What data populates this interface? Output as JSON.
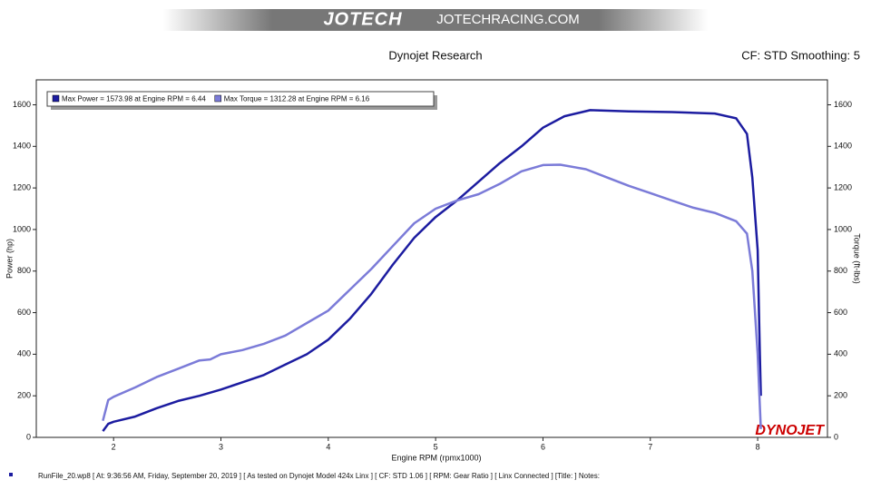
{
  "header": {
    "logo": "JOTECH",
    "site": "JOTECHRACING.COM"
  },
  "chart_data": {
    "type": "line",
    "title": "Dynojet Research",
    "subtitle": "CF: STD Smoothing: 5",
    "x_label": "Engine RPM (rpmx1000)",
    "y_label": "Power (hp)",
    "y2_label": "Torque (ft-lbs)",
    "brand": "DYNOJET",
    "xlim": [
      1.28,
      8.65
    ],
    "xticks": [
      2,
      3,
      4,
      5,
      6,
      7,
      8
    ],
    "ylim": [
      0,
      1720
    ],
    "yticks": [
      0,
      200,
      400,
      600,
      800,
      1000,
      1200,
      1400,
      1600
    ],
    "y2lim": [
      0,
      1720
    ],
    "y2ticks": [
      0,
      200,
      400,
      600,
      800,
      1000,
      1200,
      1400,
      1600
    ],
    "grid": false,
    "legend_position": "upper left",
    "series": [
      {
        "name": "Max Power = 1573.98 at Engine RPM = 6.44",
        "color": "#1c1ca0",
        "x": [
          1.9,
          1.95,
          2.0,
          2.2,
          2.4,
          2.6,
          2.8,
          3.0,
          3.2,
          3.4,
          3.6,
          3.8,
          4.0,
          4.2,
          4.4,
          4.6,
          4.8,
          5.0,
          5.2,
          5.4,
          5.6,
          5.8,
          6.0,
          6.2,
          6.44,
          6.8,
          7.2,
          7.6,
          7.8,
          7.9,
          7.95,
          8.0,
          8.02,
          8.03
        ],
        "values": [
          30,
          65,
          75,
          100,
          140,
          175,
          200,
          230,
          265,
          300,
          350,
          400,
          470,
          570,
          690,
          830,
          960,
          1060,
          1140,
          1230,
          1320,
          1400,
          1490,
          1545,
          1574,
          1568,
          1565,
          1558,
          1535,
          1460,
          1250,
          900,
          400,
          200
        ]
      },
      {
        "name": "Max Torque = 1312.28 at Engine RPM = 6.16",
        "color": "#7b7bd8",
        "axis": "y2",
        "x": [
          1.9,
          1.95,
          2.0,
          2.2,
          2.4,
          2.6,
          2.8,
          2.9,
          3.0,
          3.2,
          3.4,
          3.6,
          3.8,
          4.0,
          4.2,
          4.4,
          4.6,
          4.8,
          5.0,
          5.2,
          5.4,
          5.6,
          5.8,
          6.0,
          6.16,
          6.4,
          6.6,
          6.8,
          7.0,
          7.2,
          7.4,
          7.6,
          7.8,
          7.9,
          7.95,
          8.0,
          8.02,
          8.03
        ],
        "values": [
          80,
          180,
          195,
          240,
          290,
          330,
          370,
          375,
          400,
          420,
          450,
          490,
          550,
          610,
          710,
          810,
          920,
          1030,
          1100,
          1140,
          1170,
          1220,
          1280,
          1310,
          1312,
          1290,
          1250,
          1210,
          1175,
          1140,
          1105,
          1080,
          1040,
          980,
          800,
          400,
          150,
          40
        ]
      }
    ]
  },
  "footer": "RunFile_20.wp8 [ At: 9:36:56 AM, Friday, September 20, 2019 ] [ As tested on Dynojet Model 424x Linx ] [ CF: STD 1.06 ] [ RPM: Gear Ratio ] [ Linx Connected ] [Title: ]  Notes:"
}
